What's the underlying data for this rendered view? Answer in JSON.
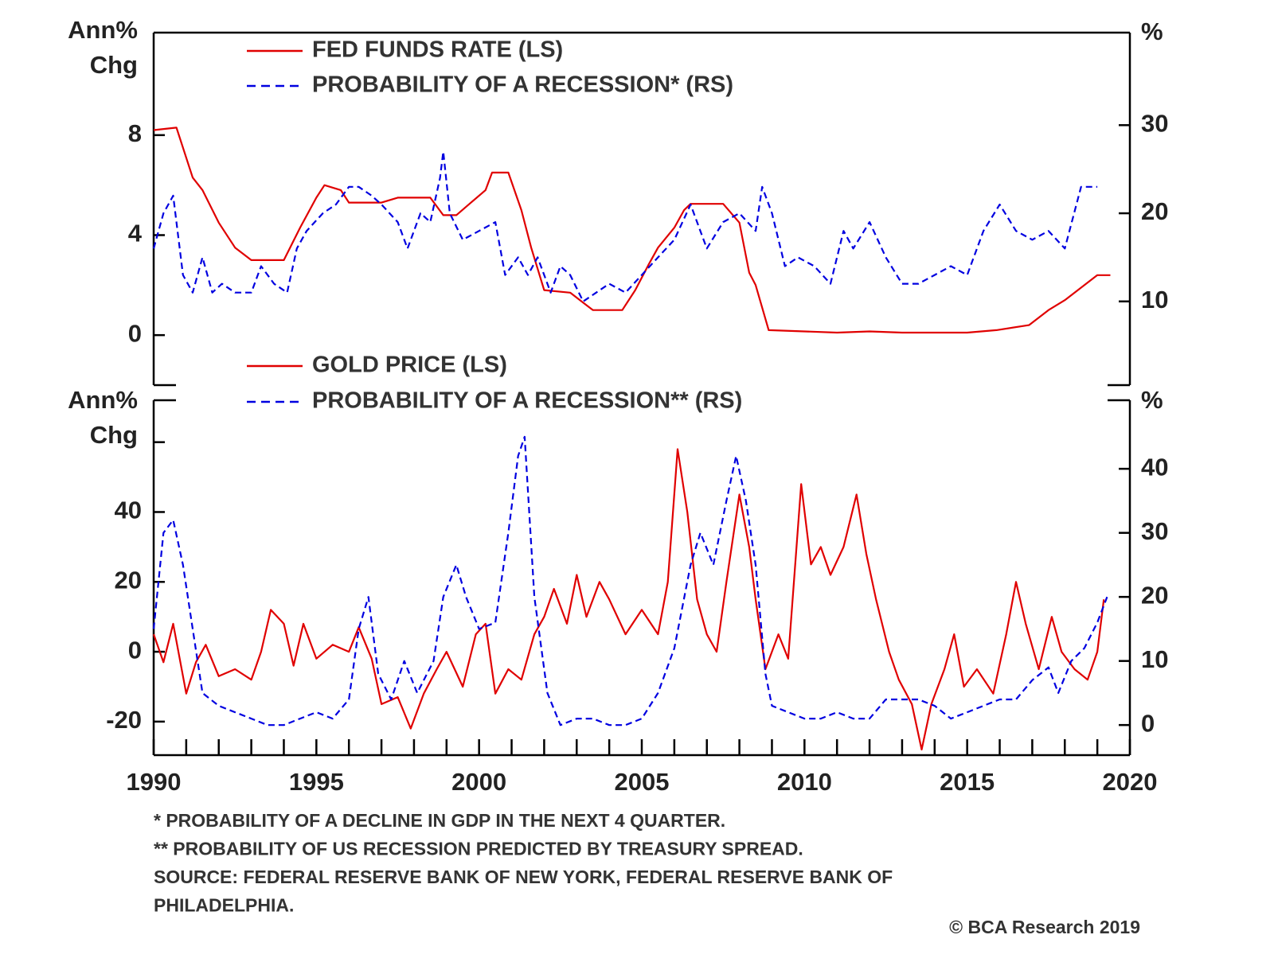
{
  "chart_data": [
    {
      "type": "line",
      "ylabel": [
        "Ann%",
        "Chg"
      ],
      "y2label": "%",
      "xlim": [
        1990,
        2020
      ],
      "ylim": [
        -2,
        12.1
      ],
      "yticks": [
        0,
        4,
        8
      ],
      "y2lim": [
        0.5,
        40.5
      ],
      "y2ticks": [
        10,
        20,
        30
      ],
      "series": [
        {
          "name": "FED FUNDS RATE (LS)",
          "color": "#e00000",
          "style": "solid",
          "x": [
            1990,
            1990.7,
            1991.2,
            1991.5,
            1992,
            1992.5,
            1993,
            1993.5,
            1994,
            1994.5,
            1995,
            1995.25,
            1995.75,
            1996,
            1997,
            1997.5,
            1998.5,
            1998.9,
            1999.3,
            1999.75,
            2000.2,
            2000.4,
            2000.9,
            2001.3,
            2001.6,
            2002,
            2002.8,
            2003.3,
            2003.5,
            2004.4,
            2004.8,
            2005.2,
            2005.5,
            2006,
            2006.3,
            2006.5,
            2007.5,
            2008,
            2008.3,
            2008.5,
            2008.9,
            2010,
            2011,
            2012,
            2013,
            2015,
            2015.9,
            2016.9,
            2017.5,
            2018,
            2018.5,
            2019,
            2019.4
          ],
          "values": [
            8.2,
            8.3,
            6.3,
            5.8,
            4.5,
            3.5,
            3.0,
            3.0,
            3.0,
            4.3,
            5.5,
            6.0,
            5.8,
            5.3,
            5.3,
            5.5,
            5.5,
            4.8,
            4.8,
            5.3,
            5.8,
            6.5,
            6.5,
            5.0,
            3.5,
            1.8,
            1.7,
            1.2,
            1.0,
            1.0,
            1.8,
            2.8,
            3.5,
            4.3,
            5.0,
            5.25,
            5.25,
            4.5,
            2.5,
            2.0,
            0.2,
            0.15,
            0.1,
            0.15,
            0.1,
            0.1,
            0.2,
            0.4,
            1.0,
            1.4,
            1.9,
            2.4,
            2.4
          ]
        },
        {
          "name": "PROBABILITY OF A RECESSION* (RS)",
          "color": "#0000e0",
          "style": "dashed",
          "axis": "y2",
          "x": [
            1990,
            1990.3,
            1990.6,
            1990.9,
            1991.2,
            1991.5,
            1991.8,
            1992.1,
            1992.5,
            1993,
            1993.3,
            1993.7,
            1994.1,
            1994.4,
            1994.7,
            1995.2,
            1995.6,
            1996,
            1996.3,
            1996.7,
            1997,
            1997.5,
            1997.8,
            1998.2,
            1998.5,
            1998.8,
            1998.9,
            1999.1,
            1999.5,
            2000,
            2000.5,
            2000.8,
            2001.2,
            2001.5,
            2001.8,
            2002.2,
            2002.5,
            2002.8,
            2003.2,
            2003.6,
            2004,
            2004.5,
            2005,
            2005.5,
            2006,
            2006.5,
            2007,
            2007.5,
            2008,
            2008.5,
            2008.7,
            2009,
            2009.4,
            2009.8,
            2010.3,
            2010.8,
            2011.2,
            2011.5,
            2012,
            2012.5,
            2013,
            2013.5,
            2014,
            2014.5,
            2015,
            2015.5,
            2016,
            2016.5,
            2017,
            2017.5,
            2018,
            2018.5,
            2019
          ],
          "values": [
            16,
            20,
            22,
            13,
            11,
            15,
            11,
            12,
            11,
            11,
            14,
            12,
            11,
            16,
            18,
            20,
            21,
            23,
            23,
            22,
            21,
            19,
            16,
            20,
            19,
            24,
            27,
            20,
            17,
            18,
            19,
            13,
            15,
            13,
            15,
            11,
            14,
            13,
            10,
            11,
            12,
            11,
            13,
            15,
            17,
            21,
            16,
            19,
            20,
            18,
            23,
            20,
            14,
            15,
            14,
            12,
            18,
            16,
            19,
            15,
            12,
            12,
            13,
            14,
            13,
            18,
            21,
            18,
            17,
            18,
            16,
            23,
            23
          ]
        }
      ]
    },
    {
      "type": "line",
      "ylabel": [
        "Ann%",
        "Chg"
      ],
      "y2label": "%",
      "xlim": [
        1990,
        2020
      ],
      "xticks": [
        1990,
        1995,
        2000,
        2005,
        2010,
        2015,
        2020
      ],
      "xminorticks": [
        1991,
        1992,
        1993,
        1994,
        1996,
        1997,
        1998,
        1999,
        2001,
        2002,
        2003,
        2004,
        2006,
        2007,
        2008,
        2009,
        2011,
        2012,
        2013,
        2014,
        2016,
        2017,
        2018,
        2019
      ],
      "ylim": [
        -29.6,
        72
      ],
      "yticks": [
        -20,
        0,
        20,
        40,
        {
          "value": 60,
          "label": ""
        }
      ],
      "y2lim": [
        -4.7,
        50.7
      ],
      "y2ticks": [
        0,
        10,
        20,
        30,
        40
      ],
      "series": [
        {
          "name": "GOLD PRICE (LS)",
          "color": "#e00000",
          "style": "solid",
          "x": [
            1990,
            1990.3,
            1990.6,
            1991,
            1991.3,
            1991.6,
            1992,
            1992.5,
            1993,
            1993.3,
            1993.6,
            1994,
            1994.3,
            1994.6,
            1995,
            1995.5,
            1996,
            1996.3,
            1996.7,
            1997,
            1997.5,
            1997.9,
            1998.3,
            1998.7,
            1999,
            1999.5,
            1999.9,
            2000.2,
            2000.5,
            2000.9,
            2001.3,
            2001.7,
            2002,
            2002.3,
            2002.7,
            2003,
            2003.3,
            2003.7,
            2004,
            2004.5,
            2005,
            2005.5,
            2005.8,
            2006.1,
            2006.4,
            2006.7,
            2007,
            2007.3,
            2007.6,
            2008,
            2008.3,
            2008.5,
            2008.8,
            2009.2,
            2009.5,
            2009.9,
            2010.2,
            2010.5,
            2010.8,
            2011.2,
            2011.6,
            2011.9,
            2012.2,
            2012.6,
            2012.9,
            2013.3,
            2013.6,
            2013.9,
            2014.3,
            2014.6,
            2014.9,
            2015.3,
            2015.8,
            2016.2,
            2016.5,
            2016.8,
            2017.2,
            2017.6,
            2017.9,
            2018.3,
            2018.7,
            2019,
            2019.2
          ],
          "values": [
            5,
            -3,
            8,
            -12,
            -3,
            2,
            -7,
            -5,
            -8,
            0,
            12,
            8,
            -4,
            8,
            -2,
            2,
            0,
            7,
            -2,
            -15,
            -13,
            -22,
            -12,
            -5,
            0,
            -10,
            5,
            8,
            -12,
            -5,
            -8,
            5,
            10,
            18,
            8,
            22,
            10,
            20,
            15,
            5,
            12,
            5,
            20,
            58,
            40,
            15,
            5,
            0,
            20,
            45,
            30,
            15,
            -5,
            5,
            -2,
            48,
            25,
            30,
            22,
            30,
            45,
            28,
            15,
            0,
            -8,
            -15,
            -28,
            -15,
            -5,
            5,
            -10,
            -5,
            -12,
            5,
            20,
            8,
            -5,
            10,
            0,
            -5,
            -8,
            0,
            15
          ]
        },
        {
          "name": "PROBABILITY OF A RECESSION** (RS)",
          "color": "#0000e0",
          "style": "dashed",
          "axis": "y2",
          "x": [
            1990,
            1990.3,
            1990.6,
            1990.9,
            1991.2,
            1991.5,
            1992,
            1992.5,
            1993,
            1993.5,
            1994,
            1994.5,
            1995,
            1995.5,
            1996,
            1996.3,
            1996.6,
            1996.9,
            1997.3,
            1997.7,
            1998.1,
            1998.6,
            1998.9,
            1999.3,
            1999.6,
            2000,
            2000.5,
            2000.9,
            2001.2,
            2001.4,
            2001.7,
            2002.1,
            2002.5,
            2003,
            2003.5,
            2004,
            2004.5,
            2005,
            2005.5,
            2006,
            2006.5,
            2006.8,
            2007.2,
            2007.6,
            2007.9,
            2008.2,
            2008.5,
            2008.8,
            2009,
            2009.5,
            2010,
            2010.5,
            2011,
            2011.5,
            2012,
            2012.5,
            2013,
            2013.5,
            2014,
            2014.5,
            2015,
            2015.5,
            2016,
            2016.5,
            2017,
            2017.5,
            2017.8,
            2018.2,
            2018.6,
            2019,
            2019.3
          ],
          "values": [
            15,
            30,
            32,
            25,
            15,
            5,
            3,
            2,
            1,
            0,
            0,
            1,
            2,
            1,
            4,
            15,
            20,
            8,
            4,
            10,
            5,
            10,
            20,
            25,
            20,
            15,
            16,
            30,
            42,
            45,
            20,
            5,
            0,
            1,
            1,
            0,
            0,
            1,
            5,
            12,
            25,
            30,
            25,
            35,
            42,
            35,
            25,
            8,
            3,
            2,
            1,
            1,
            2,
            1,
            1,
            4,
            4,
            4,
            3,
            1,
            2,
            3,
            4,
            4,
            7,
            9,
            5,
            10,
            12,
            16,
            20
          ]
        }
      ],
      "footnotes": [
        "*  PROBABILITY OF A DECLINE IN GDP IN THE NEXT 4 QUARTER.",
        "** PROBABILITY OF US RECESSION PREDICTED BY TREASURY SPREAD.",
        "SOURCE: FEDERAL RESERVE BANK OF NEW YORK, FEDERAL RESERVE BANK OF",
        "PHILADELPHIA."
      ],
      "credit": "© BCA Research 2019"
    }
  ]
}
